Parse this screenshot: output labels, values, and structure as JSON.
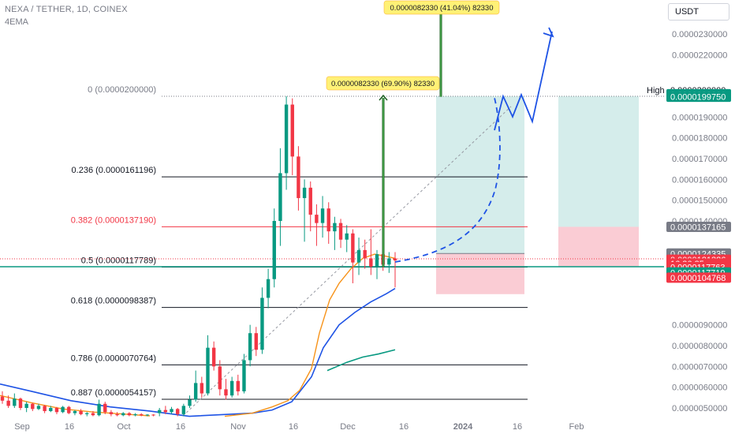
{
  "header": {
    "symbol": "NEXA / TETHER, 1D, COINEX",
    "indicator": "4EMA",
    "currency": "USDT"
  },
  "chart_data": {
    "type": "candlestick",
    "price_axis": {
      "range": [
        4.6e-06,
        2.43e-05
      ],
      "ticks": [
        "0.0000050000",
        "0.0000060000",
        "0.0000070000",
        "0.0000080000",
        "0.0000090000",
        "0.0000140000",
        "0.0000150000",
        "0.0000160000",
        "0.0000170000",
        "0.0000180000",
        "0.0000190000",
        "0.0000220000",
        "0.0000230000"
      ]
    },
    "time_axis": {
      "labels": [
        "Sep",
        "16",
        "Oct",
        "16",
        "Nov",
        "16",
        "Dec",
        "16",
        "2024",
        "16",
        "Feb"
      ]
    },
    "fibonacci": [
      {
        "level": "0",
        "price": 2e-05,
        "label": "0 (0.0000200000)",
        "color": "#787b86"
      },
      {
        "level": "0.236",
        "price": 1.61196e-05,
        "label": "0.236 (0.0000161196)",
        "color": "#131722"
      },
      {
        "level": "0.382",
        "price": 1.3719e-05,
        "label": "0.382 (0.0000137190)",
        "color": "#f23645"
      },
      {
        "level": "0.5",
        "price": 1.17789e-05,
        "label": "0.5 (0.0000117789)",
        "color": "#131722"
      },
      {
        "level": "0.618",
        "price": 9.8387e-06,
        "label": "0.618 (0.0000098387)",
        "color": "#131722"
      },
      {
        "level": "0.786",
        "price": 7.0764e-06,
        "label": "0.786 (0.0000070764)",
        "color": "#131722"
      },
      {
        "level": "0.887",
        "price": 5.4157e-06,
        "label": "0.887 (0.0000054157)",
        "color": "#131722"
      }
    ],
    "price_tags": [
      {
        "text": "High",
        "price": 2.03e-05,
        "bg": "#ffffff",
        "fg": "#131722",
        "kind": "pair-label"
      },
      {
        "text": "0.0000200000",
        "price": 2.03e-05,
        "bg": "#ffffff",
        "fg": "#131722",
        "kind": "pair-value"
      },
      {
        "text": "0.0000200000",
        "price": 2.01e-05,
        "bg": "#089981",
        "fg": "#ffffff"
      },
      {
        "text": "0.0000199750",
        "price": 1.9975e-05,
        "bg": "#089981",
        "fg": "#ffffff"
      },
      {
        "text": "0.0000137165",
        "price": 1.37165e-05,
        "bg": "#787b86",
        "fg": "#ffffff"
      },
      {
        "text": "0.0000124335",
        "price": 1.24335e-05,
        "bg": "#787b86",
        "fg": "#ffffff"
      },
      {
        "text": "0.0000121326",
        "price": 1.21326e-05,
        "bg": "#f23645",
        "fg": "#ffffff"
      },
      {
        "text": "16:26:25",
        "price": 1.195e-05,
        "bg": "#f23645",
        "fg": "#ffffff"
      },
      {
        "text": "0.0000117763",
        "price": 1.17763e-05,
        "bg": "#f23645",
        "fg": "#ffffff"
      },
      {
        "text": "0.0000117719",
        "price": 1.152e-05,
        "bg": "#089981",
        "fg": "#ffffff"
      },
      {
        "text": "0.0000104768",
        "price": 1.127e-05,
        "bg": "#f23645",
        "fg": "#ffffff"
      }
    ],
    "annotations": [
      {
        "text": "0.0000082330 (69.90%) 82330"
      },
      {
        "text": "0.0000082330 (41.04%) 82330"
      }
    ],
    "candles": [
      {
        "o": 5.55,
        "h": 5.8,
        "l": 5.2,
        "c": 5.35
      },
      {
        "o": 5.35,
        "h": 5.6,
        "l": 5.0,
        "c": 5.1
      },
      {
        "o": 5.1,
        "h": 5.7,
        "l": 5.0,
        "c": 5.45
      },
      {
        "o": 5.45,
        "h": 5.5,
        "l": 4.9,
        "c": 5.0
      },
      {
        "o": 5.0,
        "h": 5.3,
        "l": 4.8,
        "c": 5.2
      },
      {
        "o": 5.2,
        "h": 5.25,
        "l": 4.85,
        "c": 4.95
      },
      {
        "o": 4.95,
        "h": 5.2,
        "l": 4.9,
        "c": 5.1
      },
      {
        "o": 5.1,
        "h": 5.15,
        "l": 4.75,
        "c": 4.85
      },
      {
        "o": 4.85,
        "h": 5.1,
        "l": 4.8,
        "c": 5.0
      },
      {
        "o": 5.0,
        "h": 5.05,
        "l": 4.7,
        "c": 4.8
      },
      {
        "o": 4.8,
        "h": 5.1,
        "l": 4.75,
        "c": 5.05
      },
      {
        "o": 5.05,
        "h": 5.1,
        "l": 4.7,
        "c": 4.75
      },
      {
        "o": 4.75,
        "h": 4.9,
        "l": 4.65,
        "c": 4.85
      },
      {
        "o": 4.85,
        "h": 4.95,
        "l": 4.65,
        "c": 4.7
      },
      {
        "o": 4.7,
        "h": 4.8,
        "l": 4.6,
        "c": 4.75
      },
      {
        "o": 4.75,
        "h": 4.85,
        "l": 4.6,
        "c": 4.65
      },
      {
        "o": 4.65,
        "h": 5.4,
        "l": 4.6,
        "c": 5.2
      },
      {
        "o": 5.2,
        "h": 5.3,
        "l": 4.7,
        "c": 4.8
      },
      {
        "o": 4.8,
        "h": 4.9,
        "l": 4.6,
        "c": 4.7
      },
      {
        "o": 4.7,
        "h": 4.8,
        "l": 4.6,
        "c": 4.65
      },
      {
        "o": 4.65,
        "h": 4.8,
        "l": 4.6,
        "c": 4.75
      },
      {
        "o": 4.75,
        "h": 4.8,
        "l": 4.6,
        "c": 4.65
      },
      {
        "o": 4.65,
        "h": 4.75,
        "l": 4.6,
        "c": 4.7
      },
      {
        "o": 4.7,
        "h": 4.75,
        "l": 4.6,
        "c": 4.65
      },
      {
        "o": 4.65,
        "h": 4.7,
        "l": 4.6,
        "c": 4.68
      },
      {
        "o": 4.68,
        "h": 4.7,
        "l": 4.6,
        "c": 4.64
      },
      {
        "o": 4.75,
        "h": 5.0,
        "l": 4.6,
        "c": 4.9
      },
      {
        "o": 4.9,
        "h": 5.1,
        "l": 4.7,
        "c": 4.8
      },
      {
        "o": 4.8,
        "h": 5.05,
        "l": 4.7,
        "c": 4.95
      },
      {
        "o": 4.95,
        "h": 5.0,
        "l": 4.6,
        "c": 4.7
      },
      {
        "o": 4.7,
        "h": 5.2,
        "l": 4.6,
        "c": 5.1
      },
      {
        "o": 5.1,
        "h": 5.6,
        "l": 5.0,
        "c": 5.4
      },
      {
        "o": 5.4,
        "h": 6.8,
        "l": 5.3,
        "c": 6.2
      },
      {
        "o": 6.2,
        "h": 6.5,
        "l": 5.5,
        "c": 5.7
      },
      {
        "o": 5.7,
        "h": 8.5,
        "l": 5.6,
        "c": 7.9
      },
      {
        "o": 7.9,
        "h": 8.2,
        "l": 6.8,
        "c": 7.0
      },
      {
        "o": 7.0,
        "h": 7.3,
        "l": 5.6,
        "c": 5.9
      },
      {
        "o": 5.9,
        "h": 6.4,
        "l": 5.4,
        "c": 5.6
      },
      {
        "o": 5.6,
        "h": 6.5,
        "l": 5.5,
        "c": 6.3
      },
      {
        "o": 6.3,
        "h": 6.6,
        "l": 5.6,
        "c": 5.8
      },
      {
        "o": 5.8,
        "h": 7.6,
        "l": 5.7,
        "c": 7.3
      },
      {
        "o": 7.3,
        "h": 9.0,
        "l": 7.0,
        "c": 8.6
      },
      {
        "o": 8.6,
        "h": 8.9,
        "l": 7.5,
        "c": 7.8
      },
      {
        "o": 7.8,
        "h": 10.8,
        "l": 7.6,
        "c": 10.3
      },
      {
        "o": 10.3,
        "h": 11.7,
        "l": 9.8,
        "c": 11.2
      },
      {
        "o": 11.2,
        "h": 14.6,
        "l": 10.8,
        "c": 14.0
      },
      {
        "o": 14.0,
        "h": 17.5,
        "l": 12.8,
        "c": 16.3
      },
      {
        "o": 16.3,
        "h": 20.0,
        "l": 15.5,
        "c": 19.6
      },
      {
        "o": 19.6,
        "h": 19.9,
        "l": 16.2,
        "c": 17.1
      },
      {
        "o": 17.1,
        "h": 17.6,
        "l": 14.5,
        "c": 15.1
      },
      {
        "o": 15.1,
        "h": 16.0,
        "l": 13.0,
        "c": 15.6
      },
      {
        "o": 15.6,
        "h": 15.9,
        "l": 13.5,
        "c": 14.3
      },
      {
        "o": 14.3,
        "h": 14.8,
        "l": 12.8,
        "c": 13.9
      },
      {
        "o": 13.9,
        "h": 15.2,
        "l": 13.2,
        "c": 14.6
      },
      {
        "o": 14.6,
        "h": 14.9,
        "l": 12.9,
        "c": 13.5
      },
      {
        "o": 13.5,
        "h": 14.2,
        "l": 12.6,
        "c": 13.9
      },
      {
        "o": 13.9,
        "h": 14.1,
        "l": 12.7,
        "c": 13.1
      },
      {
        "o": 13.1,
        "h": 13.8,
        "l": 12.5,
        "c": 13.4
      },
      {
        "o": 13.4,
        "h": 13.6,
        "l": 11.0,
        "c": 12.0
      },
      {
        "o": 12.0,
        "h": 13.2,
        "l": 11.4,
        "c": 12.6
      },
      {
        "o": 12.6,
        "h": 13.1,
        "l": 11.7,
        "c": 12.2
      },
      {
        "o": 12.2,
        "h": 13.6,
        "l": 11.4,
        "c": 11.8
      },
      {
        "o": 11.8,
        "h": 12.6,
        "l": 11.2,
        "c": 12.4
      },
      {
        "o": 12.4,
        "h": 12.8,
        "l": 11.6,
        "c": 11.9
      },
      {
        "o": 11.9,
        "h": 12.5,
        "l": 11.5,
        "c": 12.2
      },
      {
        "o": 12.2,
        "h": 12.5,
        "l": 10.8,
        "c": 12.1
      }
    ],
    "ema_orange": [
      [
        285,
        4.6
      ],
      [
        320,
        4.75
      ],
      [
        345,
        5.05
      ],
      [
        365,
        5.35
      ],
      [
        380,
        5.85
      ],
      [
        395,
        6.9
      ],
      [
        405,
        8.6
      ],
      [
        418,
        10.2
      ],
      [
        430,
        11.0
      ],
      [
        445,
        11.7
      ],
      [
        460,
        12.2
      ],
      [
        475,
        12.4
      ],
      [
        490,
        12.3
      ],
      [
        501,
        12.2
      ]
    ],
    "ema_blue": [
      [
        0,
        6.15
      ],
      [
        40,
        5.8
      ],
      [
        90,
        5.35
      ],
      [
        140,
        5.05
      ],
      [
        190,
        4.85
      ],
      [
        240,
        4.6
      ],
      [
        320,
        4.75
      ],
      [
        345,
        4.9
      ],
      [
        370,
        5.3
      ],
      [
        395,
        6.5
      ],
      [
        410,
        7.9
      ],
      [
        430,
        9.0
      ],
      [
        450,
        9.6
      ],
      [
        470,
        10.1
      ],
      [
        490,
        10.5
      ],
      [
        501,
        10.75
      ]
    ],
    "ema_green": [
      [
        415,
        6.8
      ],
      [
        440,
        7.2
      ],
      [
        460,
        7.45
      ],
      [
        480,
        7.6
      ],
      [
        501,
        7.8
      ]
    ],
    "ema_orange_left": [
      [
        0,
        5.6
      ],
      [
        40,
        5.25
      ],
      [
        80,
        4.95
      ],
      [
        120,
        4.8
      ],
      [
        160,
        4.7
      ],
      [
        190,
        4.62
      ]
    ]
  }
}
